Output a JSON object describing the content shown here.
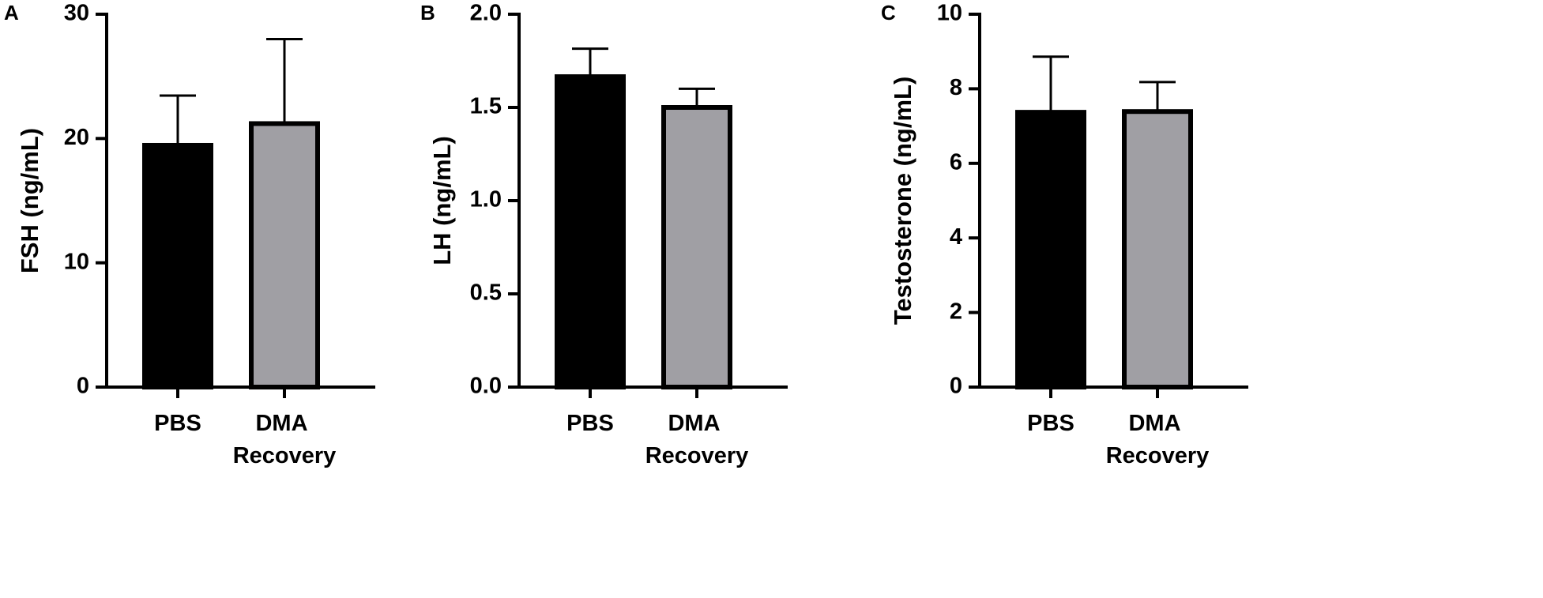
{
  "chart_data": [
    {
      "type": "bar",
      "panel_label": "A",
      "y_label": "FSH (ng/mL)",
      "categories": [
        "PBS",
        "DMA Recovery"
      ],
      "values": [
        19.45,
        21.2
      ],
      "errors": [
        4.0,
        6.8
      ],
      "colors": [
        "#000000",
        "#a09fa4"
      ],
      "ylim": [
        0,
        30
      ],
      "yticks": [
        0,
        10,
        20,
        30
      ]
    },
    {
      "type": "bar",
      "panel_label": "B",
      "y_label": "LH (ng/mL)",
      "categories": [
        "PBS",
        "DMA Recovery"
      ],
      "values": [
        1.665,
        1.5
      ],
      "errors": [
        0.15,
        0.1
      ],
      "colors": [
        "#000000",
        "#a09fa4"
      ],
      "ylim": [
        0,
        2
      ],
      "yticks": [
        {
          "value": 0,
          "label": "0.0"
        },
        0.5,
        {
          "value": 1,
          "label": "1.0"
        },
        1.5,
        {
          "value": 2,
          "label": "2.0"
        }
      ]
    },
    {
      "type": "bar",
      "panel_label": "C",
      "y_label": "Testosterone (ng/mL)",
      "categories": [
        "PBS",
        "DMA Recovery"
      ],
      "values": [
        7.37,
        7.39
      ],
      "errors": [
        1.49,
        0.79
      ],
      "colors": [
        "#000000",
        "#a09fa4"
      ],
      "ylim": [
        0,
        10
      ],
      "yticks": [
        0,
        2,
        4,
        6,
        8,
        10
      ]
    }
  ]
}
